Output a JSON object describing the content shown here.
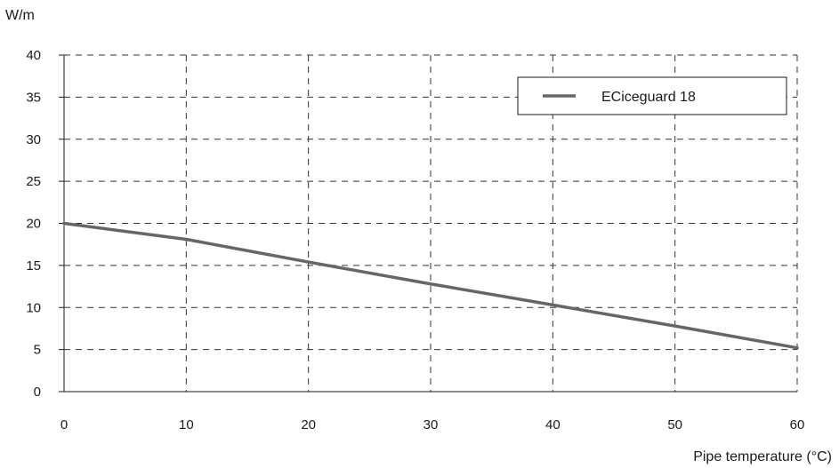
{
  "chart_data": {
    "type": "line",
    "title": "",
    "xlabel": "Pipe temperature (°C)",
    "ylabel": "W/m",
    "xlim": [
      0,
      60
    ],
    "ylim": [
      0,
      40
    ],
    "xticks": [
      0,
      10,
      20,
      30,
      40,
      50,
      60
    ],
    "yticks": [
      0,
      5,
      10,
      15,
      20,
      25,
      30,
      35,
      40
    ],
    "grid": true,
    "legend_position": "top-right",
    "series": [
      {
        "name": "ECiceguard 18",
        "color": "#666666",
        "x": [
          0,
          10,
          20,
          30,
          40,
          50,
          60
        ],
        "y": [
          20,
          18.1,
          15.4,
          12.8,
          10.3,
          7.8,
          5.2
        ]
      }
    ]
  }
}
